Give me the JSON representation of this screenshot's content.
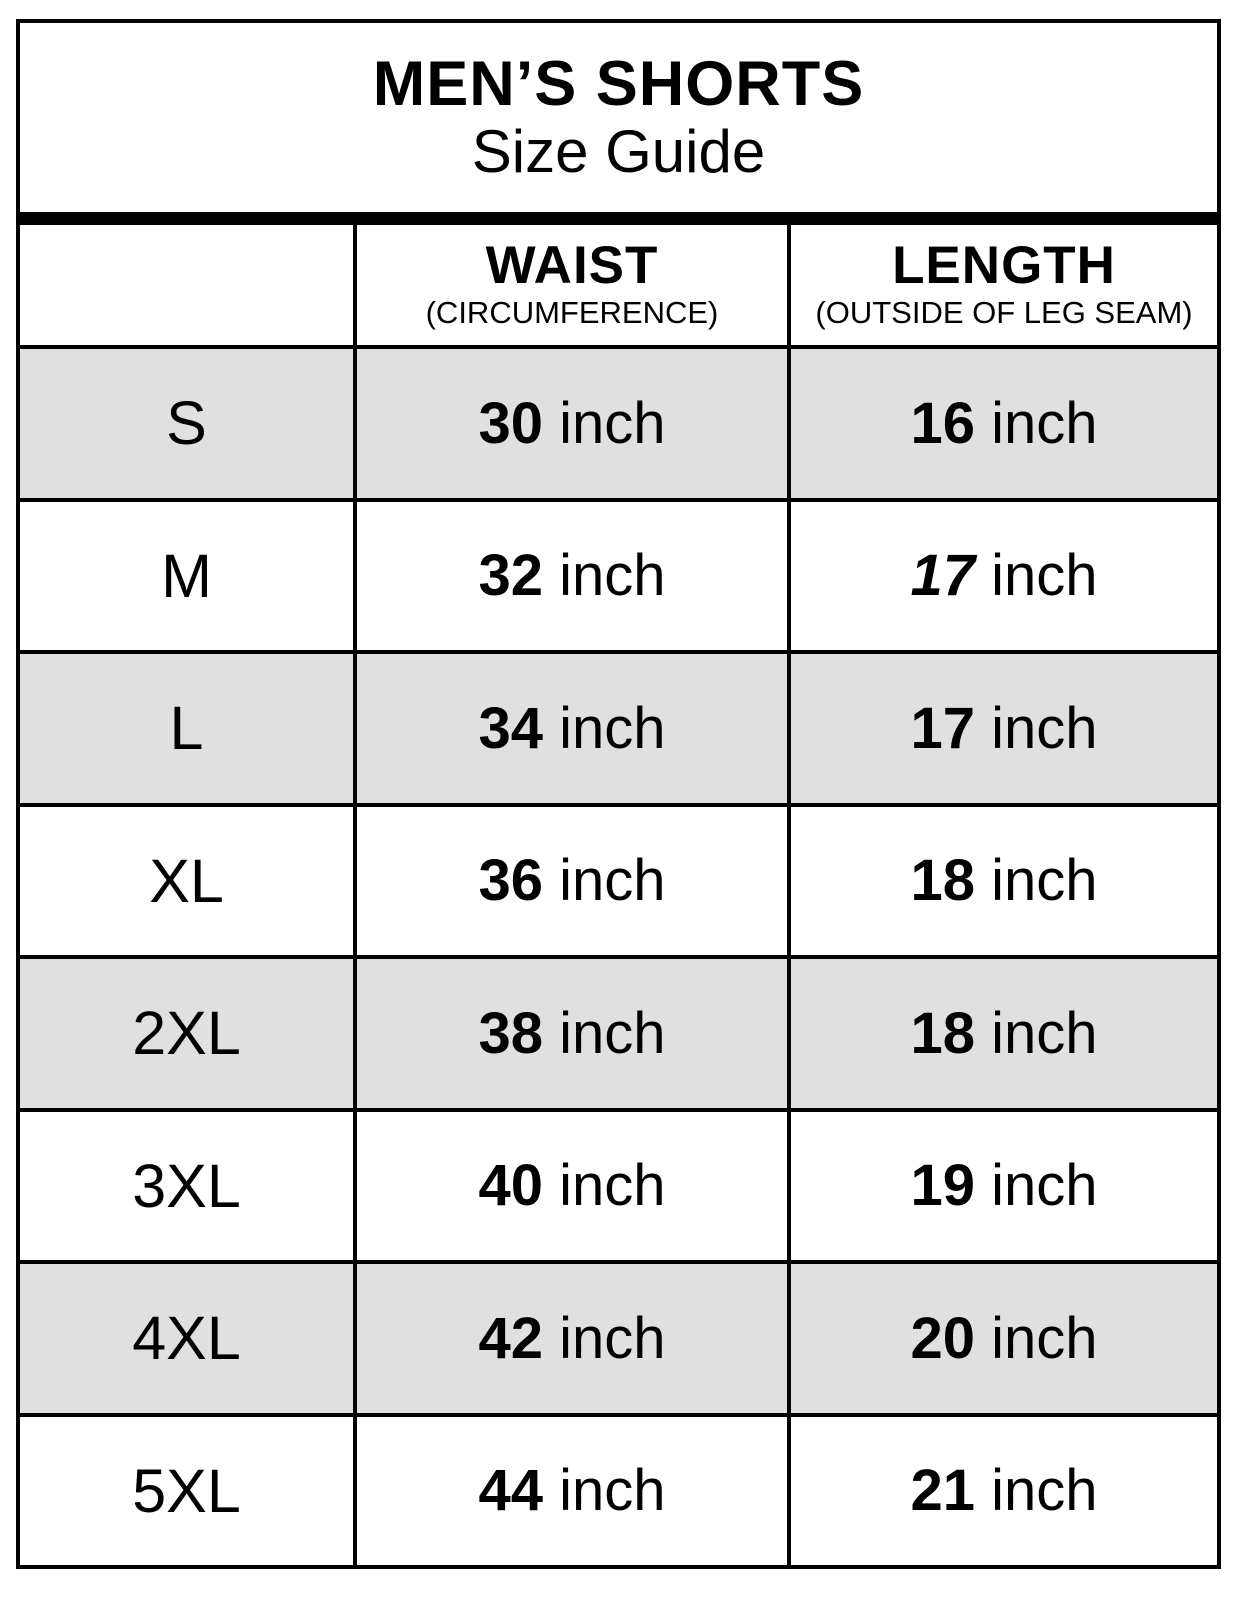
{
  "title": {
    "line1": "MEN’S SHORTS",
    "line2": "Size Guide"
  },
  "header": {
    "waist": {
      "label": "WAIST",
      "sub": "(CIRCUMFERENCE)"
    },
    "length": {
      "label": "LENGTH",
      "sub": "(OUTSIDE OF LEG SEAM)"
    }
  },
  "unit": "inch",
  "rows": [
    {
      "size": "S",
      "waist": "30",
      "length": "16",
      "length_italic": false,
      "shaded": true
    },
    {
      "size": "M",
      "waist": "32",
      "length": "17",
      "length_italic": true,
      "shaded": false
    },
    {
      "size": "L",
      "waist": "34",
      "length": "17",
      "length_italic": false,
      "shaded": true
    },
    {
      "size": "XL",
      "waist": "36",
      "length": "18",
      "length_italic": false,
      "shaded": false
    },
    {
      "size": "2XL",
      "waist": "38",
      "length": "18",
      "length_italic": false,
      "shaded": true
    },
    {
      "size": "3XL",
      "waist": "40",
      "length": "19",
      "length_italic": false,
      "shaded": false
    },
    {
      "size": "4XL",
      "waist": "42",
      "length": "20",
      "length_italic": false,
      "shaded": true
    },
    {
      "size": "5XL",
      "waist": "44",
      "length": "21",
      "length_italic": false,
      "shaded": false
    }
  ],
  "colors": {
    "shaded_row": "#e0e0e0",
    "border": "#000000",
    "text": "#000000",
    "background": "#ffffff"
  },
  "chart_data": {
    "type": "table",
    "title": "MEN’S SHORTS",
    "subtitle": "Size Guide",
    "columns": [
      "",
      "WAIST (CIRCUMFERENCE)",
      "LENGTH (OUTSIDE OF LEG SEAM)"
    ],
    "rows": [
      [
        "S",
        "30 inch",
        "16 inch"
      ],
      [
        "M",
        "32 inch",
        "17 inch"
      ],
      [
        "L",
        "34 inch",
        "17 inch"
      ],
      [
        "XL",
        "36 inch",
        "18 inch"
      ],
      [
        "2XL",
        "38 inch",
        "18 inch"
      ],
      [
        "3XL",
        "40 inch",
        "19 inch"
      ],
      [
        "4XL",
        "42 inch",
        "20 inch"
      ],
      [
        "5XL",
        "44 inch",
        "21 inch"
      ]
    ],
    "layout_hints": {
      "shaded_rows": [
        "S",
        "L",
        "2XL",
        "4XL"
      ],
      "grid": true
    }
  }
}
